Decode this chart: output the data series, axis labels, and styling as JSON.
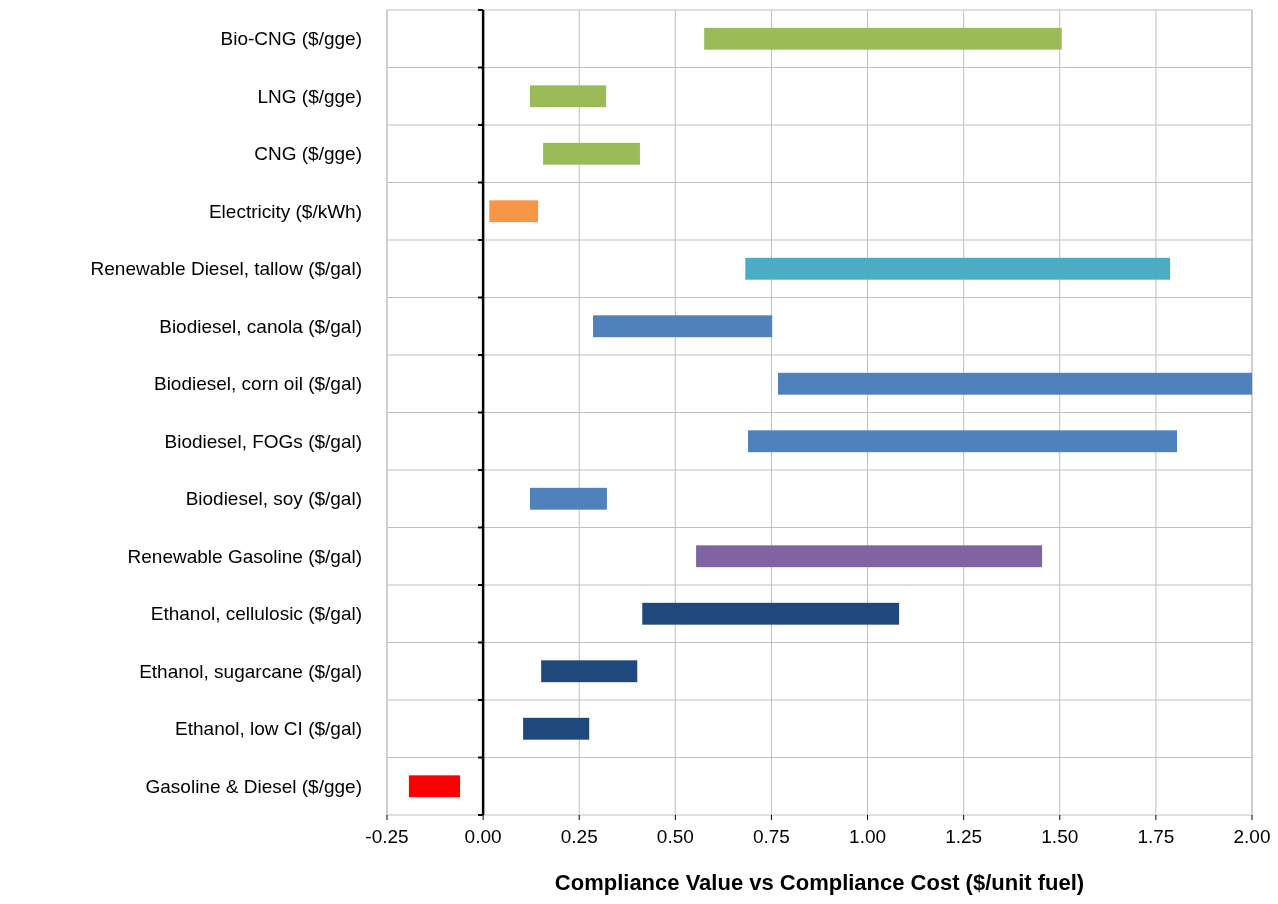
{
  "chart_data": {
    "type": "bar",
    "orientation": "horizontal",
    "xlabel": "Compliance Value vs Compliance Cost ($/unit fuel)",
    "categories": [
      "Bio-CNG ($/gge)",
      "LNG ($/gge)",
      "CNG ($/gge)",
      "Electricity ($/kWh)",
      "Renewable Diesel, tallow ($/gal)",
      "Biodiesel, canola ($/gal)",
      "Biodiesel, corn oil ($/gal)",
      "Biodiesel, FOGs ($/gal)",
      "Biodiesel, soy ($/gal)",
      "Renewable Gasoline ($/gal)",
      "Ethanol, cellulosic ($/gal)",
      "Ethanol, sugarcane ($/gal)",
      "Ethanol, low CI ($/gal)",
      "Gasoline & Diesel ($/gge)"
    ],
    "base": [
      0.575,
      0.122,
      0.156,
      0.016,
      0.682,
      0.286,
      0.767,
      0.689,
      0.122,
      0.554,
      0.414,
      0.151,
      0.104,
      -0.193
    ],
    "values": [
      0.93,
      0.198,
      0.252,
      0.127,
      1.105,
      0.466,
      1.233,
      1.116,
      0.2,
      0.9,
      0.668,
      0.25,
      0.172,
      0.133
    ],
    "colors": [
      "#9bbb59",
      "#9bbb59",
      "#9bbb59",
      "#f79646",
      "#4bacc6",
      "#4f81bd",
      "#4f81bd",
      "#4f81bd",
      "#4f81bd",
      "#8064a2",
      "#1f497d",
      "#1f497d",
      "#1f497d",
      "#ff0000"
    ],
    "xlim": [
      -0.25,
      2.0
    ],
    "xticks": [
      -0.25,
      {
        "value": 0,
        "label": "0.00"
      },
      0.25,
      {
        "value": 0.5,
        "label": "0.50"
      },
      0.75,
      {
        "value": 1,
        "label": "1.00"
      },
      1.25,
      {
        "value": 1.5,
        "label": "1.50"
      },
      1.75,
      {
        "value": 2,
        "label": "2.00"
      }
    ],
    "grid": true
  }
}
